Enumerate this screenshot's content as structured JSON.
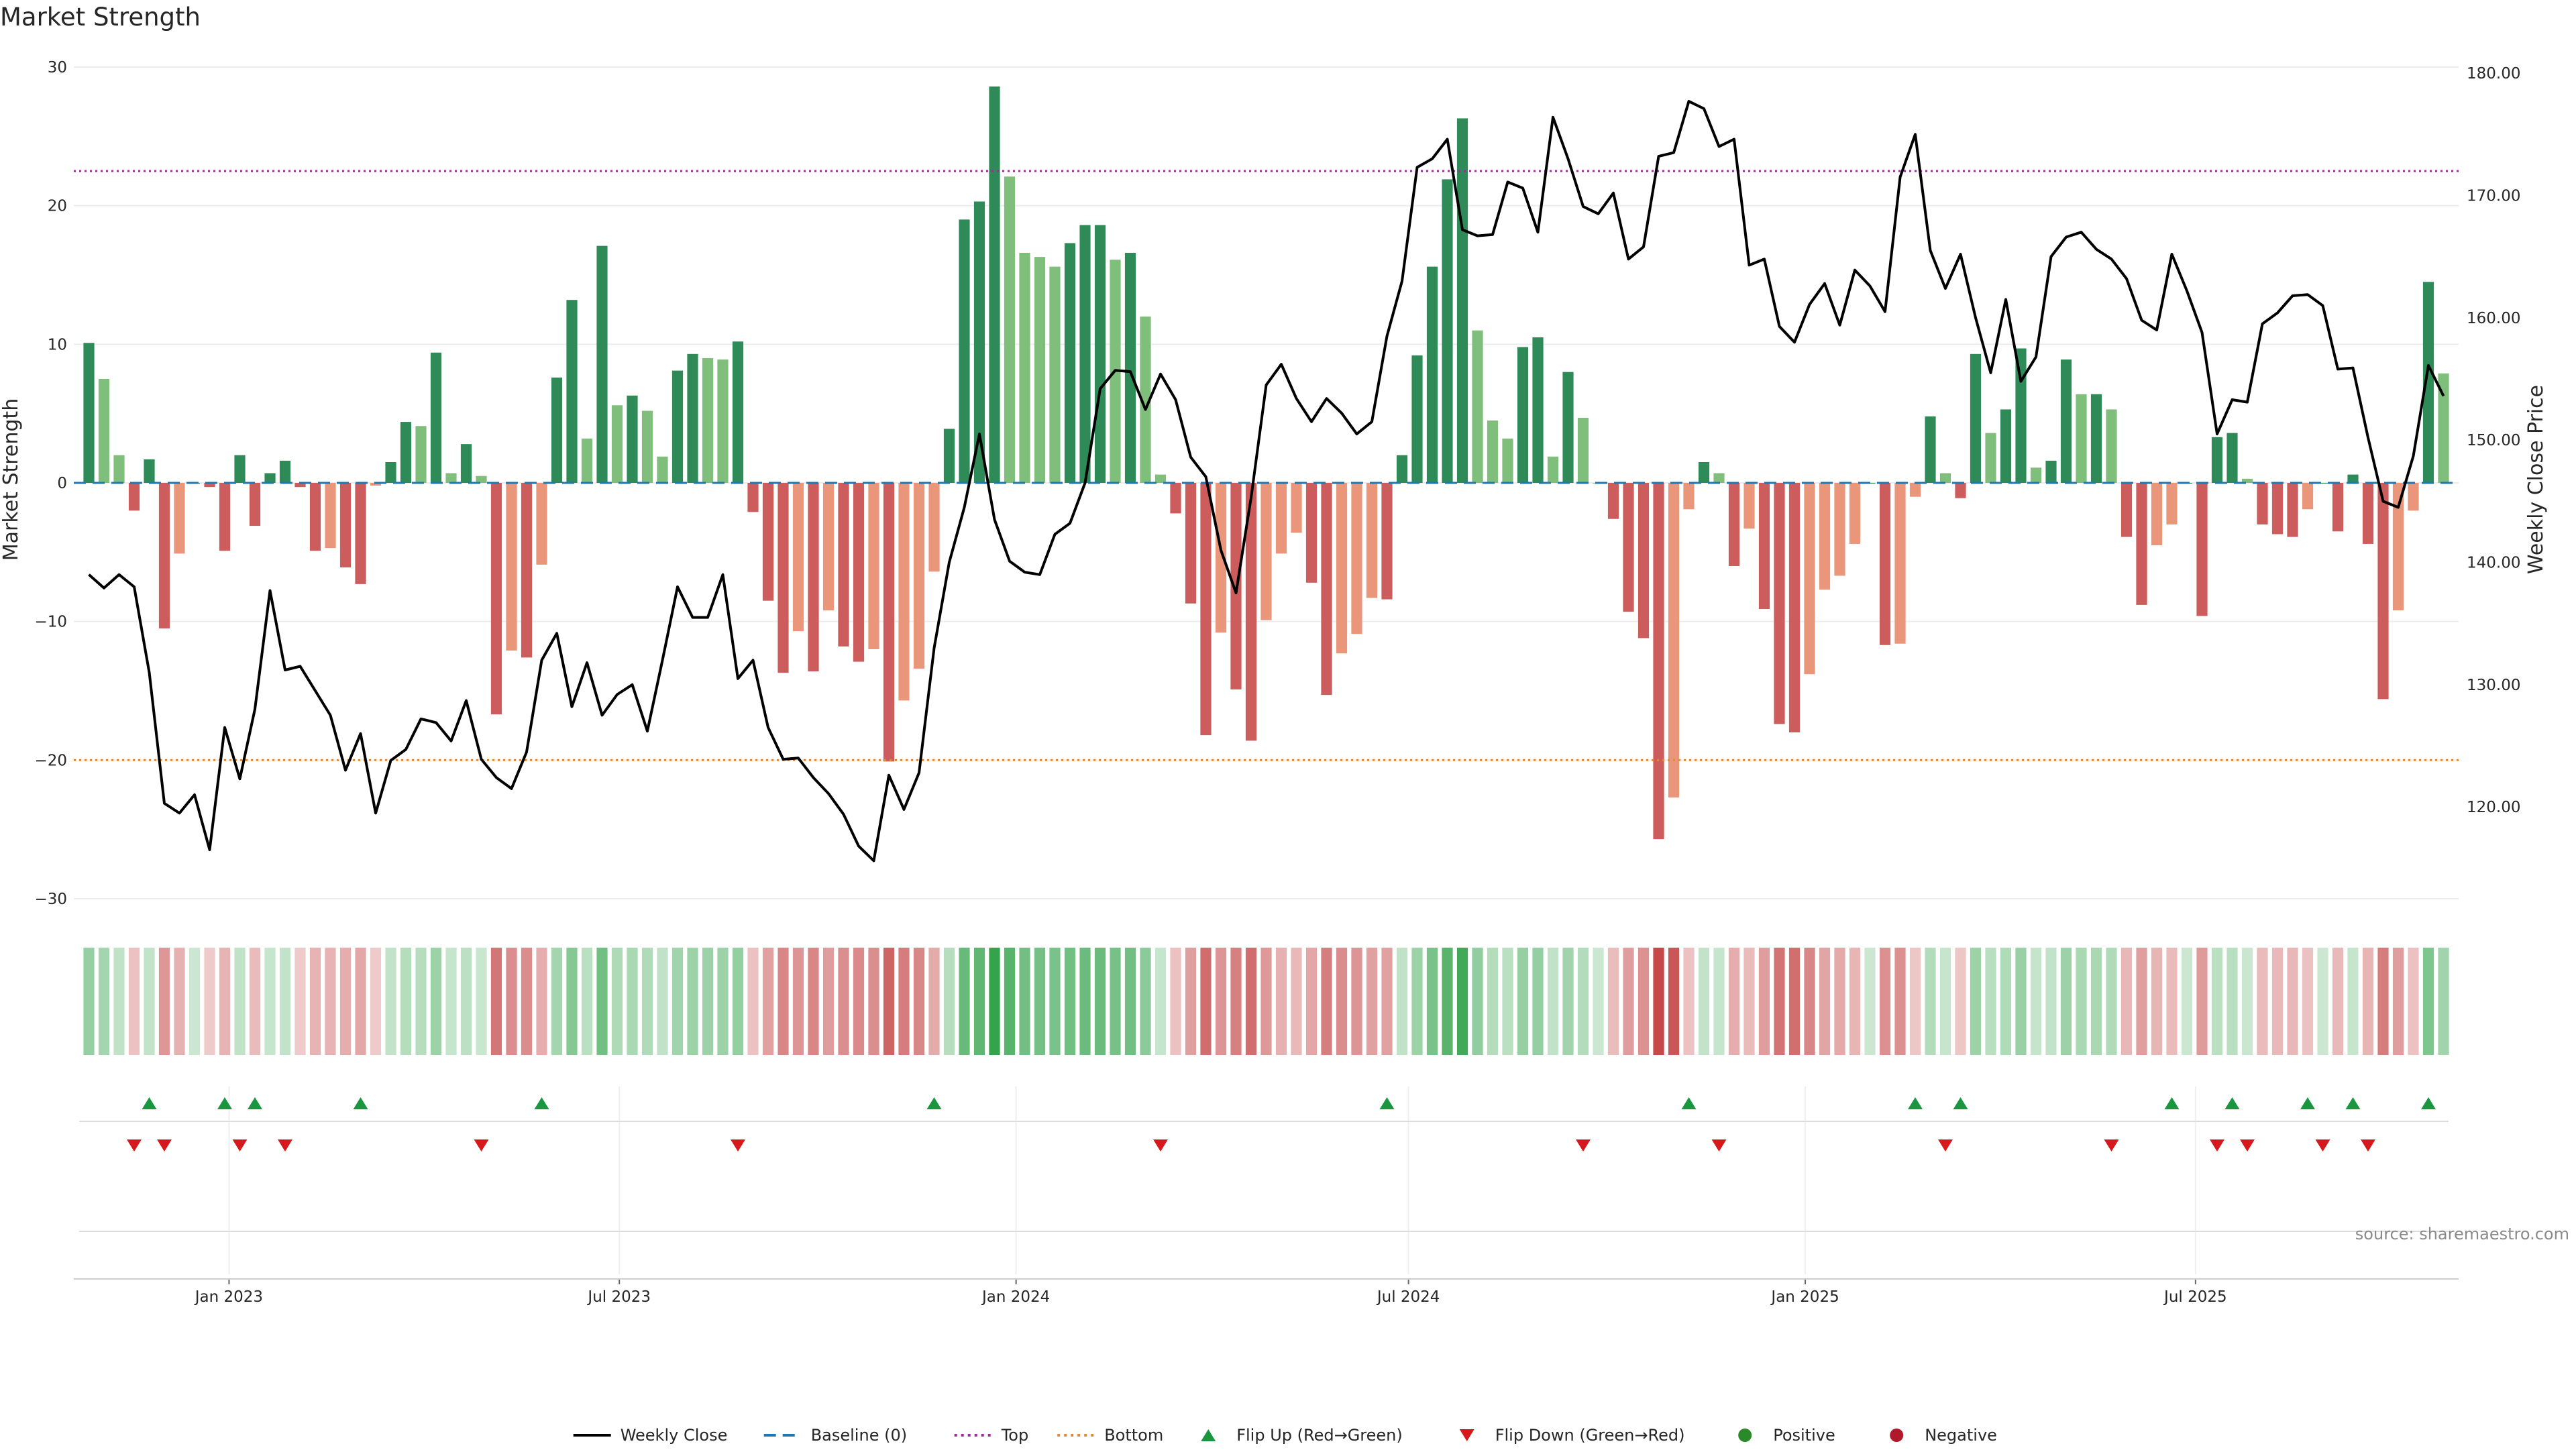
{
  "title": "Market Strength",
  "source_text": "source: sharemaestro.com",
  "colors": {
    "pos_strong": "#2e8b57",
    "pos_light": "#7fbf7b",
    "neg_strong": "#cd5c5c",
    "neg_light": "#e9967a",
    "price_line": "#000000",
    "baseline": "#1f77b4",
    "top": "#9b2c9b",
    "bottom": "#e08a3c",
    "flip_up": "#1a9641",
    "flip_down": "#d7191c",
    "positive_dot": "#2a8a2a",
    "negative_dot": "#b2182b"
  },
  "chart_data": {
    "type": "bar",
    "title": "Market Strength",
    "ylabel": "Market Strength",
    "y2label": "Weekly Close Price",
    "ylim": [
      -30,
      30
    ],
    "y_ticks": [
      "30",
      "20",
      "10",
      "0",
      "−10",
      "−20",
      "−30"
    ],
    "y_tick_values": [
      30,
      20,
      10,
      0,
      -10,
      -20,
      -30
    ],
    "y2lim": [
      112.5,
      180.5
    ],
    "y2_ticks": [
      "180.00",
      "170.00",
      "160.00",
      "150.00",
      "140.00",
      "130.00",
      "120.00"
    ],
    "y2_tick_values": [
      180,
      170,
      160,
      150,
      140,
      130,
      120
    ],
    "x_start": "2022-10-21",
    "x_end": "2025-10-31",
    "week_start": "2022-10-28",
    "x_tick_labels": [
      "Jan 2023",
      "Jul 2023",
      "Jan 2024",
      "Jul 2024",
      "Jan 2025",
      "Jul 2025"
    ],
    "x_tick_dates": [
      "2023-01-01",
      "2023-07-01",
      "2024-01-01",
      "2024-07-01",
      "2025-01-01",
      "2025-07-01"
    ],
    "reference_lines": {
      "top": 22.5,
      "bottom": -20,
      "baseline": 0
    },
    "grid": true,
    "legend_position": "bottom-center",
    "series": [
      {
        "name": "Market Strength",
        "values": [
          10.1,
          7.5,
          2,
          -2,
          1.7,
          -10.5,
          -5.1,
          0,
          -0.3,
          -4.9,
          2,
          -3.1,
          0.7,
          1.6,
          -0.3,
          -4.9,
          -4.7,
          -6.1,
          -7.3,
          -0.2,
          1.5,
          4.4,
          4.1,
          9.4,
          0.7,
          2.8,
          0.5,
          -16.7,
          -12.1,
          -12.6,
          -5.9,
          7.6,
          13.2,
          3.2,
          17.1,
          5.6,
          6.3,
          5.2,
          1.9,
          8.1,
          9.3,
          9,
          8.9,
          10.2,
          -2.1,
          -8.5,
          -13.7,
          -10.7,
          -13.6,
          -9.2,
          -11.8,
          -12.9,
          -12,
          -20.1,
          -15.7,
          -13.4,
          -6.4,
          3.9,
          19,
          20.3,
          28.6,
          22.1,
          16.6,
          16.3,
          15.6,
          17.3,
          18.6,
          18.6,
          16.1,
          16.6,
          12,
          0.6,
          -2.2,
          -8.7,
          -18.2,
          -10.8,
          -14.9,
          -18.6,
          -9.9,
          -5.1,
          -3.6,
          -7.2,
          -15.3,
          -12.3,
          -10.9,
          -8.3,
          -8.4,
          2,
          9.2,
          15.6,
          21.9,
          26.3,
          11,
          4.5,
          3.2,
          9.8,
          10.5,
          1.9,
          8,
          4.7,
          0,
          -2.6,
          -9.3,
          -11.2,
          -25.7,
          -22.7,
          -1.9,
          1.5,
          0.7,
          -6,
          -3.3,
          -9.1,
          -17.4,
          -18,
          -13.8,
          -7.7,
          -6.7,
          -4.4,
          0,
          -11.7,
          -11.6,
          -1,
          4.8,
          0.7,
          -1.1,
          9.3,
          3.6,
          5.3,
          9.7,
          1.1,
          1.6,
          8.9,
          6.4,
          6.4,
          5.3,
          -3.9,
          -8.8,
          -4.5,
          -3,
          0,
          -9.6,
          3.3,
          3.6,
          0.3,
          -3,
          -3.7,
          -3.9,
          -1.9,
          0,
          -3.5,
          0.6,
          -4.4,
          -15.6,
          -9.2,
          -2,
          14.5,
          7.9
        ]
      },
      {
        "name": "Weekly Close",
        "axis": "right",
        "values": [
          139,
          137.9,
          139,
          138,
          131,
          120.3,
          119.5,
          121,
          116.5,
          126.5,
          122.3,
          128,
          137.7,
          131.2,
          131.5,
          129.5,
          127.5,
          123,
          126,
          119.5,
          123.8,
          124.7,
          127.2,
          126.9,
          125.4,
          128.7,
          123.9,
          122.4,
          121.5,
          124.5,
          132,
          134.2,
          128.2,
          131.8,
          127.5,
          129.2,
          130,
          126.2,
          132,
          138,
          135.5,
          135.5,
          139,
          130.5,
          132,
          126.5,
          123.9,
          124,
          122.4,
          121.1,
          119.4,
          116.8,
          115.6,
          122.6,
          119.8,
          122.8,
          133,
          140,
          144.5,
          150.5,
          143.5,
          140.1,
          139.2,
          139,
          142.3,
          143.2,
          146.5,
          154.2,
          155.7,
          155.6,
          152.5,
          155.4,
          153.3,
          148.6,
          147,
          141,
          137.5,
          145.3,
          154.5,
          156.2,
          153.4,
          151.5,
          153.4,
          152.2,
          150.5,
          151.5,
          158.5,
          163,
          172.3,
          173,
          174.6,
          167.2,
          166.7,
          166.8,
          171.1,
          170.6,
          167,
          176.4,
          173,
          169.1,
          168.5,
          170.2,
          164.8,
          165.8,
          173.2,
          173.5,
          177.7,
          177.1,
          174,
          174.6,
          164.3,
          164.8,
          159.3,
          158,
          161.1,
          162.8,
          159.4,
          163.9,
          162.6,
          160.5,
          171.5,
          175,
          165.5,
          162.4,
          165.2,
          160,
          155.5,
          161.5,
          154.8,
          156.8,
          165,
          166.6,
          167,
          165.6,
          164.8,
          163.2,
          159.8,
          159,
          165.2,
          162.2,
          158.8,
          150.5,
          153.3,
          153.1,
          159.5,
          160.4,
          161.8,
          161.9,
          161,
          155.8,
          155.9,
          150.2,
          145,
          144.5,
          148.7,
          156.1,
          153.6
        ]
      }
    ],
    "markers": {
      "flip_up_weeks": [
        4,
        9,
        11,
        18,
        30,
        56,
        86,
        106,
        121,
        124,
        138,
        142,
        147,
        150,
        155
      ],
      "flip_down_weeks": [
        3,
        5,
        10,
        13,
        26,
        43,
        71,
        99,
        108,
        123,
        134,
        141,
        143,
        148,
        151
      ]
    }
  },
  "legend": [
    {
      "label": "Weekly Close",
      "kind": "line-solid",
      "color": "#000000"
    },
    {
      "label": "Baseline (0)",
      "kind": "line-dash",
      "color": "#1f77b4"
    },
    {
      "label": "Top",
      "kind": "line-dot",
      "color": "#9b2c9b"
    },
    {
      "label": "Bottom",
      "kind": "line-dot",
      "color": "#e08a3c"
    },
    {
      "label": "Flip Up (Red→Green)",
      "kind": "tri-up",
      "color": "#1a9641"
    },
    {
      "label": "Flip Down (Green→Red)",
      "kind": "tri-down",
      "color": "#d7191c"
    },
    {
      "label": "Positive",
      "kind": "dot",
      "color": "#2a8a2a"
    },
    {
      "label": "Negative",
      "kind": "dot",
      "color": "#b2182b"
    }
  ]
}
